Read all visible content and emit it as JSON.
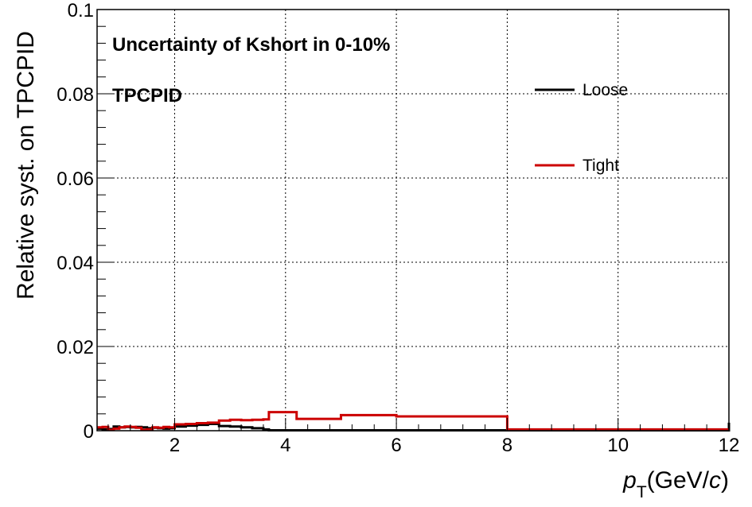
{
  "chart_data": {
    "type": "line",
    "title": "",
    "xlabel": {
      "p": "p",
      "sub": "T",
      "unit_pre": "(GeV/",
      "unit_c": "c",
      "unit_post": ")"
    },
    "ylabel": "Relative syst. on TPCPID",
    "xlim": [
      0.6,
      12
    ],
    "ylim": [
      0,
      0.1
    ],
    "x_ticks": [
      2,
      4,
      6,
      8,
      10,
      12
    ],
    "x_tick_labels": [
      "2",
      "4",
      "6",
      "8",
      "10",
      "12"
    ],
    "y_ticks": [
      0,
      0.02,
      0.04,
      0.06,
      0.08,
      0.1
    ],
    "y_tick_labels": [
      "0",
      "0.02",
      "0.04",
      "0.06",
      "0.08",
      "0.1"
    ],
    "grid": true,
    "legend_position": "top-right",
    "annotations": [
      "Uncertainty of Kshort in 0-10%",
      "TPCPID"
    ],
    "bin_edges": [
      0.6,
      0.7,
      0.8,
      0.9,
      1.0,
      1.1,
      1.2,
      1.3,
      1.4,
      1.5,
      1.6,
      1.7,
      1.8,
      1.9,
      2.0,
      2.2,
      2.4,
      2.6,
      2.8,
      3.0,
      3.2,
      3.4,
      3.6,
      3.7,
      4.2,
      5.0,
      6.0,
      8.0,
      12.0
    ],
    "series": [
      {
        "name": "Loose",
        "color": "#000000",
        "values": [
          0.0005,
          0.0003,
          0.0004,
          0.001,
          0.0008,
          0.0009,
          0.0008,
          0.0009,
          0.0008,
          0.0006,
          0.0007,
          0.0006,
          0.0005,
          0.0006,
          0.001,
          0.0012,
          0.0014,
          0.0016,
          0.0011,
          0.001,
          0.0008,
          0.0006,
          0.0003,
          0.0001,
          0.0001,
          0.0001,
          0.0001,
          0.0001,
          0.0019
        ]
      },
      {
        "name": "Tight",
        "color": "#cc0000",
        "values": [
          0.0008,
          0.0009,
          0.0002,
          0.0005,
          0.0008,
          0.001,
          0.0009,
          0.0007,
          0.0002,
          0.0003,
          0.0008,
          0.0007,
          0.0009,
          0.0008,
          0.0015,
          0.0016,
          0.0018,
          0.0019,
          0.0024,
          0.0026,
          0.0025,
          0.0026,
          0.0027,
          0.0044,
          0.0028,
          0.0037,
          0.0034,
          0.0003,
          0.0003
        ]
      }
    ]
  }
}
